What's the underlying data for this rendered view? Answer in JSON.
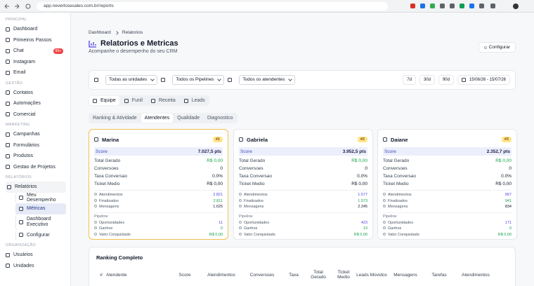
{
  "browser": {
    "url": "app.neverlosesales.com.br/reports"
  },
  "sidebar": {
    "sections": [
      {
        "title": "PRINCIPAL",
        "items": [
          {
            "label": "Dashboard"
          },
          {
            "label": "Primeiros Passos"
          },
          {
            "label": "Chat",
            "badge": "99+"
          },
          {
            "label": "Instagram"
          },
          {
            "label": "Email"
          }
        ]
      },
      {
        "title": "GESTÃO",
        "items": [
          {
            "label": "Contatos"
          },
          {
            "label": "Automações"
          },
          {
            "label": "Comercial"
          }
        ]
      },
      {
        "title": "MARKETING",
        "items": [
          {
            "label": "Campanhas"
          },
          {
            "label": "Formulários"
          },
          {
            "label": "Produtos"
          },
          {
            "label": "Gestao de Projetos"
          }
        ]
      },
      {
        "title": "RELATÓRIOS",
        "items": [
          {
            "label": "Relatórios",
            "children": [
              {
                "label": "Meu Desempenho"
              },
              {
                "label": "Métricas",
                "active": true
              },
              {
                "label": "Dashboard Executivo"
              },
              {
                "label": "Configurar"
              }
            ]
          }
        ]
      },
      {
        "title": "ORGANIZAÇÃO",
        "items": [
          {
            "label": "Usuários"
          },
          {
            "label": "Unidades"
          }
        ]
      }
    ]
  },
  "header": {
    "breadcrumb": [
      "Dashboard",
      "Relatorios"
    ],
    "title": "Relatorios e Metricas",
    "subtitle": "Acompanhe o desempenho do seu CRM",
    "button": "Configurar"
  },
  "filters": {
    "selects": [
      "Todas as unidades",
      "Todos os Pipelines",
      "Todos os atendentes"
    ],
    "periods": [
      "7d",
      "30d",
      "90d"
    ],
    "date_range": "15/06/26 - 15/07/26"
  },
  "tabs": {
    "items": [
      "Equipe",
      "Funil",
      "Receita",
      "Leads"
    ],
    "active": 0
  },
  "subtabs": {
    "items": [
      "Ranking & Atividade",
      "Atendentes",
      "Qualidade",
      "Diagnostico"
    ],
    "active": 1
  },
  "cards": [
    {
      "name": "Marina",
      "rank": "#1",
      "highlight": true,
      "score_label": "Score",
      "score": "7.027,5 pts",
      "metrics": [
        {
          "label": "Total Gerado",
          "value": "R$ 0,00",
          "green": true
        },
        {
          "label": "Conversoes",
          "value": "0"
        },
        {
          "label": "Taxa Conversao",
          "value": "0.0%"
        },
        {
          "label": "Ticket Medio",
          "value": "R$ 0,00"
        }
      ],
      "activity": [
        {
          "label": "Atendimentos",
          "value": "2.821",
          "color": "#4f46e5"
        },
        {
          "label": "Finalizados",
          "value": "2.811",
          "color": "#16a34a"
        },
        {
          "label": "Mensagens",
          "value": "1.625"
        }
      ],
      "pipeline_title": "Pipeline",
      "pipeline": [
        {
          "label": "Oportunidades",
          "value": "11",
          "color": "#4f46e5"
        },
        {
          "label": "Ganhos",
          "value": "0",
          "color": "#16a34a"
        },
        {
          "label": "Valor Conquistado",
          "value": "R$ 0,00",
          "color": "#16a34a"
        }
      ]
    },
    {
      "name": "Gabriela",
      "rank": "#2",
      "highlight": false,
      "score_label": "Score",
      "score": "3.952,5 pts",
      "metrics": [
        {
          "label": "Total Gerado",
          "value": "R$ 0,00",
          "green": true
        },
        {
          "label": "Conversoes",
          "value": "0"
        },
        {
          "label": "Taxa Conversao",
          "value": "0.0%"
        },
        {
          "label": "Ticket Medio",
          "value": "R$ 0,00"
        }
      ],
      "activity": [
        {
          "label": "Atendimentos",
          "value": "1.577",
          "color": "#4f46e5"
        },
        {
          "label": "Finalizados",
          "value": "1.573",
          "color": "#16a34a"
        },
        {
          "label": "Mensagens",
          "value": "2.245"
        }
      ],
      "pipeline_title": "Pipeline",
      "pipeline": [
        {
          "label": "Oportunidades",
          "value": "423",
          "color": "#4f46e5"
        },
        {
          "label": "Ganhos",
          "value": "13",
          "color": "#16a34a"
        },
        {
          "label": "Valor Conquistado",
          "value": "R$ 0,00",
          "color": "#16a34a"
        }
      ]
    },
    {
      "name": "Daiane",
      "rank": "#3",
      "highlight": false,
      "score_label": "Score",
      "score": "2.352,7 pts",
      "metrics": [
        {
          "label": "Total Gerado",
          "value": "R$ 0,00",
          "green": true
        },
        {
          "label": "Conversoes",
          "value": "0"
        },
        {
          "label": "Taxa Conversao",
          "value": "0.0%"
        },
        {
          "label": "Ticket Medio",
          "value": "R$ 0,00"
        }
      ],
      "activity": [
        {
          "label": "Atendimentos",
          "value": "957",
          "color": "#4f46e5"
        },
        {
          "label": "Finalizados",
          "value": "941",
          "color": "#16a34a"
        },
        {
          "label": "Mensagens",
          "value": "834"
        }
      ],
      "pipeline_title": "Pipeline",
      "pipeline": [
        {
          "label": "Oportunidades",
          "value": "171",
          "color": "#4f46e5"
        },
        {
          "label": "Ganhos",
          "value": "0",
          "color": "#16a34a"
        },
        {
          "label": "Valor Conquistado",
          "value": "R$ 0,00",
          "color": "#16a34a"
        }
      ]
    }
  ],
  "table": {
    "title": "Ranking Completo",
    "headers": [
      "#",
      "Atendente",
      "Score",
      "Atendimentos",
      "Conversoes",
      "Taxa",
      "Total Gerado",
      "Ticket Medio",
      "Leads Movidos",
      "Mensagens",
      "Tarefas",
      "Atendimentos"
    ]
  }
}
